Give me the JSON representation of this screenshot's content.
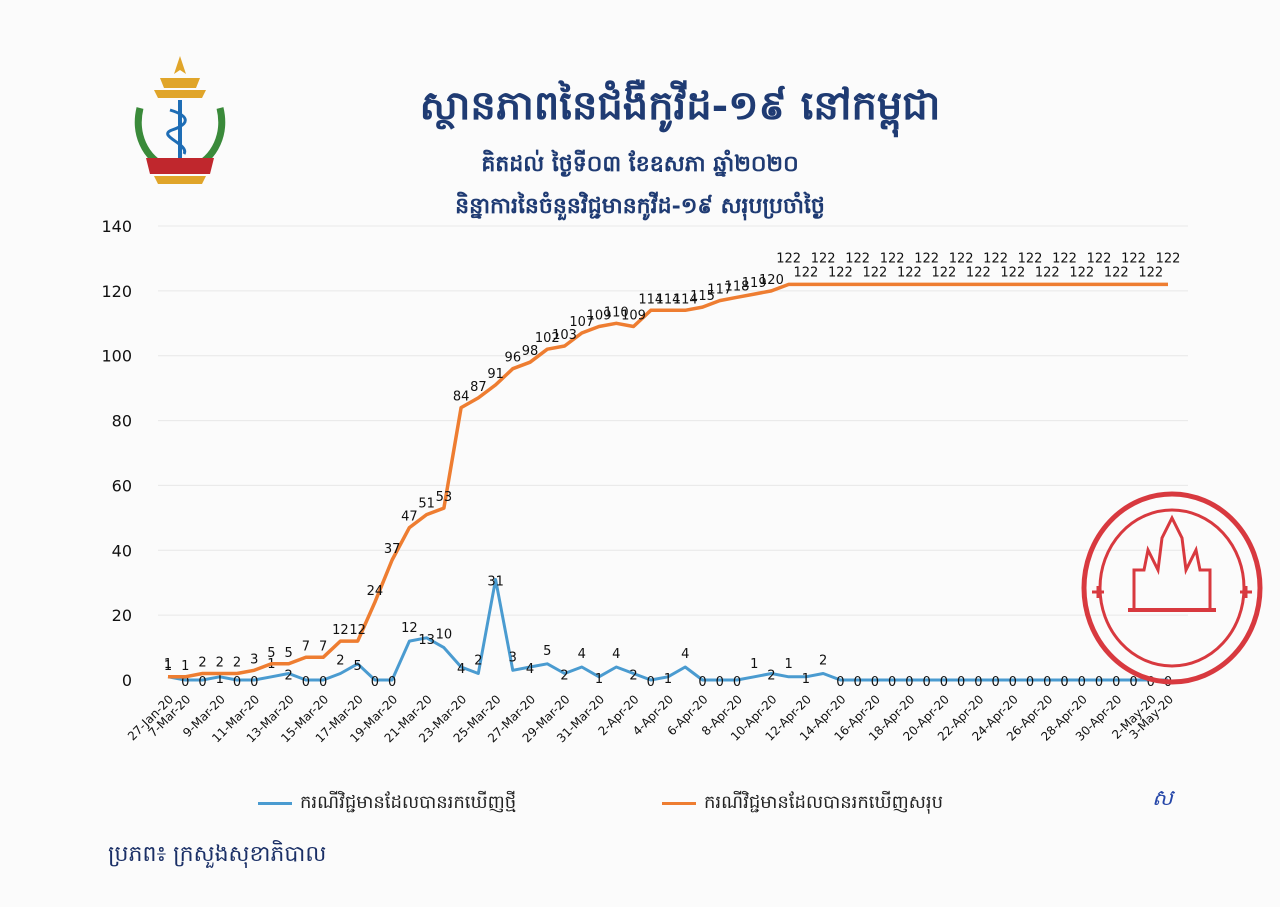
{
  "header": {
    "title": "ស្ថានភាពនៃជំងឺកូវីដ-១៩ នៅកម្ពុជា",
    "subtitle": "គិតដល់ ថ្ងៃទី០៣ ខែឧសភា ឆ្នាំ២០២០",
    "chart_subtitle": "និន្នាការនៃចំនួនវិជ្ជមានកូវីដ-១៩ សរុបប្រចាំថ្ងៃ"
  },
  "source_note": "ប្រភព៖ ក្រសួងសុខាភិបាល",
  "signature": "ស",
  "colors": {
    "new_cases": "#4a9bd0",
    "total_cases": "#ee7d31",
    "title": "#1f3b73",
    "stamp": "#d8393f",
    "logo_gold": "#e0a52a",
    "logo_green": "#3a8a3a"
  },
  "chart_data": {
    "type": "line",
    "ylim": [
      0,
      140
    ],
    "yticks": [
      0,
      20,
      40,
      60,
      80,
      100,
      120,
      140
    ],
    "grid": true,
    "legend_position": "bottom",
    "x": [
      "27-Jan-20",
      "7-Mar-20",
      "8-Mar-20",
      "9-Mar-20",
      "10-Mar-20",
      "11-Mar-20",
      "12-Mar-20",
      "13-Mar-20",
      "14-Mar-20",
      "15-Mar-20",
      "16-Mar-20",
      "17-Mar-20",
      "18-Mar-20",
      "19-Mar-20",
      "20-Mar-20",
      "21-Mar-20",
      "22-Mar-20",
      "23-Mar-20",
      "24-Mar-20",
      "25-Mar-20",
      "26-Mar-20",
      "27-Mar-20",
      "28-Mar-20",
      "29-Mar-20",
      "30-Mar-20",
      "31-Mar-20",
      "1-Apr-20",
      "2-Apr-20",
      "3-Apr-20",
      "4-Apr-20",
      "5-Apr-20",
      "6-Apr-20",
      "7-Apr-20",
      "8-Apr-20",
      "9-Apr-20",
      "10-Apr-20",
      "11-Apr-20",
      "12-Apr-20",
      "13-Apr-20",
      "14-Apr-20",
      "15-Apr-20",
      "16-Apr-20",
      "17-Apr-20",
      "18-Apr-20",
      "19-Apr-20",
      "20-Apr-20",
      "21-Apr-20",
      "22-Apr-20",
      "23-Apr-20",
      "24-Apr-20",
      "25-Apr-20",
      "26-Apr-20",
      "27-Apr-20",
      "28-Apr-20",
      "29-Apr-20",
      "30-Apr-20",
      "1-May-20",
      "2-May-20",
      "3-May-20"
    ],
    "x_tick_labels": [
      "27-Jan-20",
      "7-Mar-20",
      "9-Mar-20",
      "11-Mar-20",
      "13-Mar-20",
      "15-Mar-20",
      "17-Mar-20",
      "19-Mar-20",
      "21-Mar-20",
      "23-Mar-20",
      "25-Mar-20",
      "27-Mar-20",
      "29-Mar-20",
      "31-Mar-20",
      "2-Apr-20",
      "4-Apr-20",
      "6-Apr-20",
      "8-Apr-20",
      "10-Apr-20",
      "12-Apr-20",
      "14-Apr-20",
      "16-Apr-20",
      "18-Apr-20",
      "20-Apr-20",
      "22-Apr-20",
      "24-Apr-20",
      "26-Apr-20",
      "28-Apr-20",
      "30-Apr-20",
      "2-May-20",
      "3-May-20"
    ],
    "series": [
      {
        "name": "ករណីវិជ្ជមានដែលបានរកឃើញថ្មី",
        "color": "#4a9bd0",
        "values": [
          1,
          0,
          0,
          1,
          0,
          0,
          1,
          2,
          0,
          0,
          2,
          5,
          0,
          0,
          12,
          13,
          10,
          4,
          2,
          31,
          3,
          4,
          5,
          2,
          4,
          1,
          4,
          2,
          0,
          1,
          4,
          0,
          0,
          0,
          1,
          2,
          1,
          1,
          2,
          0,
          0,
          0,
          0,
          0,
          0,
          0,
          0,
          0,
          0,
          0,
          0,
          0,
          0,
          0,
          0,
          0,
          0,
          0,
          0
        ]
      },
      {
        "name": "ករណីវិជ្ជមានដែលបានរកឃើញសរុប",
        "color": "#ee7d31",
        "values": [
          1,
          1,
          2,
          2,
          2,
          3,
          5,
          5,
          7,
          7,
          12,
          12,
          24,
          37,
          47,
          51,
          53,
          84,
          87,
          91,
          96,
          98,
          102,
          103,
          107,
          109,
          110,
          109,
          114,
          114,
          114,
          115,
          117,
          118,
          119,
          120,
          122,
          122,
          122,
          122,
          122,
          122,
          122,
          122,
          122,
          122,
          122,
          122,
          122,
          122,
          122,
          122,
          122,
          122,
          122,
          122,
          122,
          122,
          122
        ]
      }
    ]
  }
}
